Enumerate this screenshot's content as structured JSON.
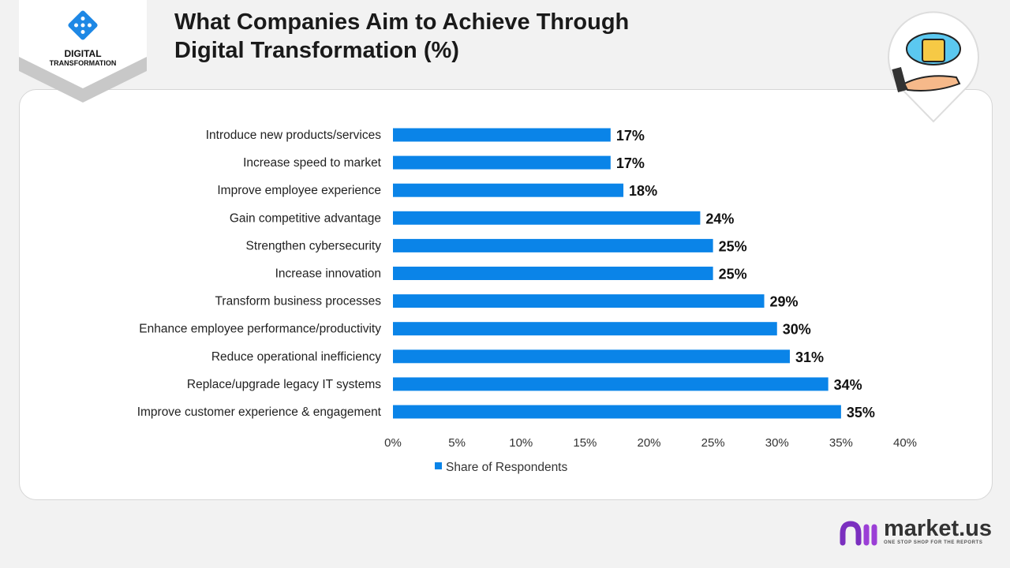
{
  "header": {
    "title_line1": "What Companies Aim to Achieve Through",
    "title_line2": "Digital Transformation (%)"
  },
  "badge": {
    "line1": "DIGITAL",
    "line2": "TRANSFORMATION"
  },
  "brand": {
    "name": "market.us",
    "tagline": "ONE STOP SHOP FOR THE REPORTS",
    "accent": "#7b2fbf"
  },
  "chart_data": {
    "type": "bar",
    "orientation": "horizontal",
    "title": "",
    "xlabel": "",
    "ylabel": "",
    "categories": [
      "Introduce new products/services",
      "Increase speed to market",
      "Improve employee experience",
      "Gain competitive advantage",
      "Strengthen cybersecurity",
      "Increase innovation",
      "Transform business processes",
      "Enhance employee performance/productivity",
      "Reduce operational inefficiency",
      "Replace/upgrade legacy IT systems",
      "Improve customer experience & engagement"
    ],
    "series": [
      {
        "name": "Share of Respondents",
        "values": [
          17,
          17,
          18,
          24,
          25,
          25,
          29,
          30,
          31,
          34,
          35
        ],
        "color": "#0a84e8"
      }
    ],
    "data_labels": [
      "17%",
      "17%",
      "18%",
      "24%",
      "25%",
      "25%",
      "29%",
      "30%",
      "31%",
      "34%",
      "35%"
    ],
    "xlim": [
      0,
      40
    ],
    "xticks": [
      "0%",
      "5%",
      "10%",
      "15%",
      "20%",
      "25%",
      "30%",
      "35%",
      "40%"
    ],
    "grid": false,
    "legend": "bottom"
  }
}
